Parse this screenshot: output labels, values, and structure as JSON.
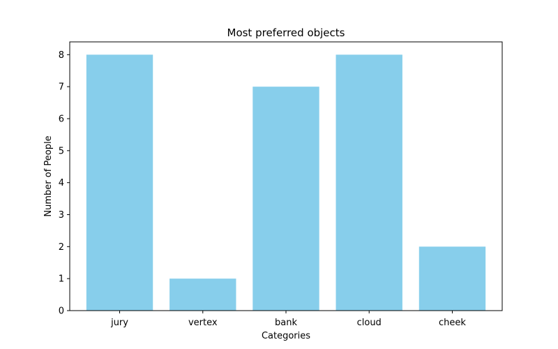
{
  "chart_data": {
    "type": "bar",
    "title": "Most preferred objects",
    "xlabel": "Categories",
    "ylabel": "Number of People",
    "categories": [
      "jury",
      "vertex",
      "bank",
      "cloud",
      "cheek"
    ],
    "values": [
      8,
      1,
      7,
      8,
      2
    ],
    "ylim": [
      0,
      8.4
    ],
    "yticks": [
      0,
      1,
      2,
      3,
      4,
      5,
      6,
      7,
      8
    ],
    "bar_color": "#87ceeb",
    "grid": false,
    "legend": "none"
  }
}
